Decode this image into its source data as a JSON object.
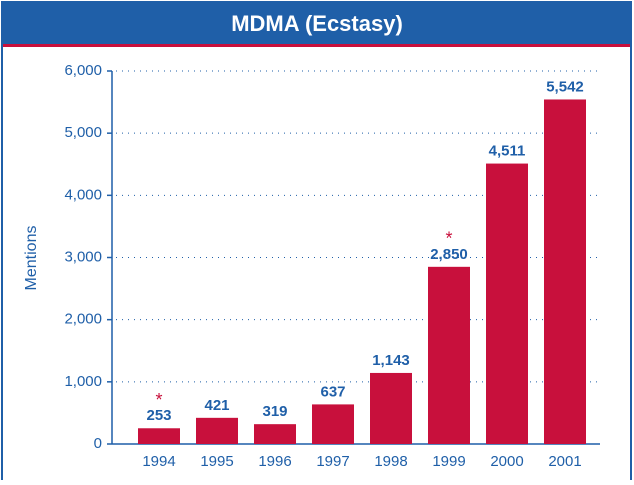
{
  "chart_data": {
    "type": "bar",
    "title": "MDMA (Ecstasy)",
    "y_label": "Mentions",
    "categories": [
      "1994",
      "1995",
      "1996",
      "1997",
      "1998",
      "1999",
      "2000",
      "2001"
    ],
    "values": [
      253,
      421,
      319,
      637,
      1143,
      2850,
      4511,
      5542
    ],
    "value_labels": [
      "253",
      "421",
      "319",
      "637",
      "1,143",
      "2,850",
      "4,511",
      "5,542"
    ],
    "markers": [
      "*",
      null,
      null,
      null,
      null,
      "*",
      null,
      null
    ],
    "color": "#c8103c",
    "ylim": [
      0,
      6000
    ],
    "yticks": [
      0,
      {
        "value": 1000,
        "label": "1,000"
      },
      {
        "value": 2000,
        "label": "2,000"
      },
      {
        "value": 3000,
        "label": "3,000"
      },
      {
        "value": 4000,
        "label": "4,000"
      },
      {
        "value": 5000,
        "label": "5,000"
      },
      {
        "value": 6000,
        "label": "6,000"
      }
    ],
    "grid": true
  }
}
